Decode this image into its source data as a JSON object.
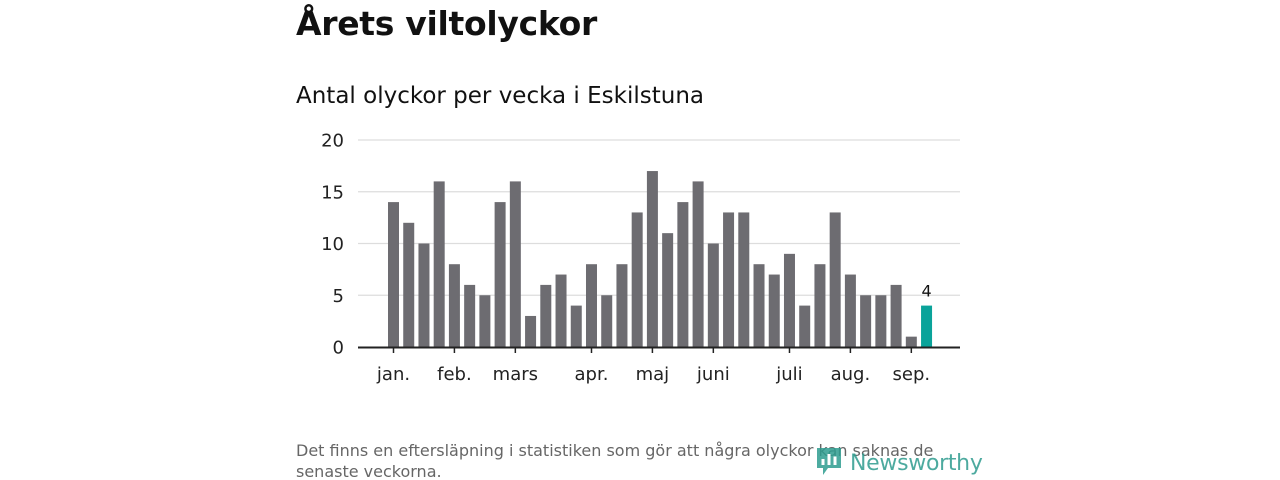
{
  "heading": "Årets viltolyckor",
  "footnote": "Det finns en eftersläpning i statistiken som gör att några olyckor kan saknas de senaste veckorna.",
  "brand": {
    "name": "Newsworthy",
    "color": "#2e9c8f",
    "icon": "newsworthy-logo-icon"
  },
  "colors": {
    "bar": "#6d6c71",
    "highlight": "#0aa39a",
    "grid": "#dddddd",
    "axis": "#222222"
  },
  "chart_data": {
    "type": "bar",
    "title": "Antal olyckor per vecka i Eskilstuna",
    "xlabel": "",
    "ylabel": "",
    "ylim": [
      0,
      20
    ],
    "yticks": [
      0,
      5,
      10,
      15,
      20
    ],
    "grid": true,
    "values": [
      14,
      12,
      10,
      16,
      8,
      6,
      5,
      14,
      16,
      3,
      6,
      7,
      4,
      8,
      5,
      8,
      13,
      17,
      11,
      14,
      16,
      10,
      13,
      13,
      8,
      7,
      9,
      4,
      8,
      13,
      7,
      5,
      5,
      6,
      1,
      4
    ],
    "highlight_index": 35,
    "highlight_label": "4",
    "month_ticks": [
      {
        "label": "jan.",
        "bar": 0
      },
      {
        "label": "feb.",
        "bar": 4
      },
      {
        "label": "mars",
        "bar": 8
      },
      {
        "label": "apr.",
        "bar": 13
      },
      {
        "label": "maj",
        "bar": 17
      },
      {
        "label": "juni",
        "bar": 21
      },
      {
        "label": "juli",
        "bar": 26
      },
      {
        "label": "aug.",
        "bar": 30
      },
      {
        "label": "sep.",
        "bar": 34
      }
    ]
  }
}
